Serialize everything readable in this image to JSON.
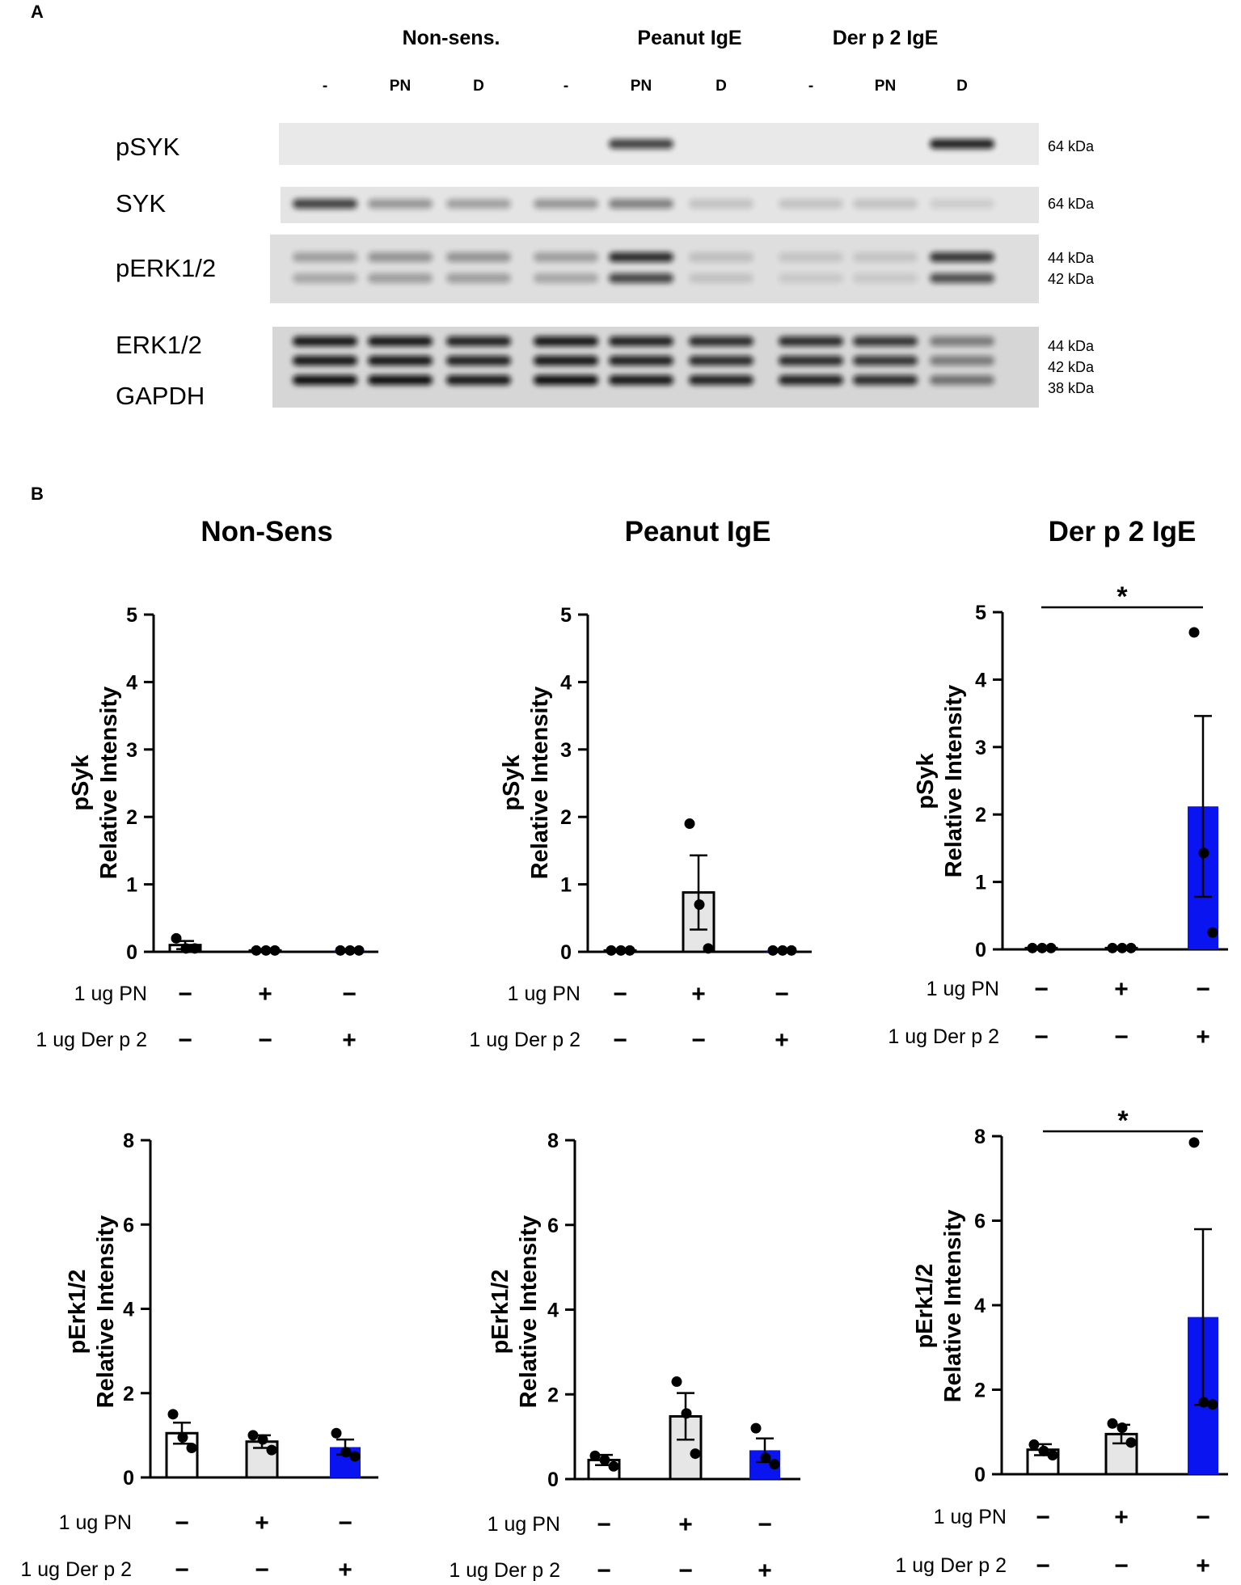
{
  "figure": {
    "panel_a_label": "A",
    "panel_b_label": "B"
  },
  "blot": {
    "group_labels": [
      "Non-sens.",
      "Peanut IgE",
      "Der p 2 IgE"
    ],
    "lane_labels": [
      "-",
      "PN",
      "D",
      "-",
      "PN",
      "D",
      "-",
      "PN",
      "D"
    ],
    "rows": [
      {
        "label": "pSYK",
        "sizes": [
          "64 kDa"
        ]
      },
      {
        "label": "SYK",
        "sizes": [
          "64 kDa"
        ]
      },
      {
        "label": "pERK1/2",
        "sizes": [
          "44 kDa",
          "42 kDa"
        ]
      },
      {
        "label": "ERK1/2",
        "sizes": [
          "44 kDa",
          "42 kDa",
          "38 kDa"
        ]
      },
      {
        "label": "GAPDH",
        "sizes": []
      }
    ]
  },
  "columns": [
    "Non-Sens",
    "Peanut IgE",
    "Der p 2 IgE"
  ],
  "condition_rows": {
    "pn_label": "1 ug PN",
    "derp2_label": "1 ug Der p 2",
    "pn_signs": [
      "−",
      "+",
      "−"
    ],
    "derp2_signs": [
      "−",
      "−",
      "+"
    ]
  },
  "colors": {
    "bar_white": "#ffffff",
    "bar_grey": "#e6e6e6",
    "bar_blue": "#0a14f0",
    "axis": "#000000"
  },
  "ylabels": {
    "psyk": [
      "pSyk",
      "Relative Intensity"
    ],
    "perk": [
      "pErk1/2",
      "Relative Intensity"
    ]
  },
  "chart_data": [
    {
      "type": "bar",
      "title": "Non-Sens",
      "ylabel": "pSyk Relative Intensity",
      "ylim": [
        0,
        5
      ],
      "yticks": [
        0,
        1,
        2,
        3,
        4,
        5
      ],
      "categories": [
        "-",
        "PN",
        "Der p 2"
      ],
      "values": [
        0.1,
        0.02,
        0.02
      ],
      "errors": [
        0.06,
        0.0,
        0.0
      ],
      "points": [
        [
          0.2,
          0.05,
          0.05
        ],
        [
          0.02,
          0.02,
          0.02
        ],
        [
          0.02,
          0.02,
          0.02
        ]
      ],
      "significance": null
    },
    {
      "type": "bar",
      "title": "Peanut IgE",
      "ylabel": "pSyk Relative Intensity",
      "ylim": [
        0,
        5
      ],
      "yticks": [
        0,
        1,
        2,
        3,
        4,
        5
      ],
      "categories": [
        "-",
        "PN",
        "Der p 2"
      ],
      "values": [
        0.02,
        0.88,
        0.02
      ],
      "errors": [
        0.0,
        0.55,
        0.0
      ],
      "points": [
        [
          0.02,
          0.02,
          0.02
        ],
        [
          1.9,
          0.7,
          0.05
        ],
        [
          0.02,
          0.02,
          0.02
        ]
      ],
      "significance": null
    },
    {
      "type": "bar",
      "title": "Der p 2 IgE",
      "ylabel": "pSyk Relative Intensity",
      "ylim": [
        0,
        5
      ],
      "yticks": [
        0,
        1,
        2,
        3,
        4,
        5
      ],
      "categories": [
        "-",
        "PN",
        "Der p 2"
      ],
      "values": [
        0.02,
        0.02,
        2.12
      ],
      "errors": [
        0.0,
        0.0,
        1.34
      ],
      "points": [
        [
          0.02,
          0.02,
          0.02
        ],
        [
          0.02,
          0.02,
          0.02
        ],
        [
          4.7,
          1.43,
          0.25
        ]
      ],
      "significance": "*"
    },
    {
      "type": "bar",
      "title": "Non-Sens",
      "ylabel": "pErk1/2 Relative Intensity",
      "ylim": [
        0,
        8
      ],
      "yticks": [
        0,
        2,
        4,
        6,
        8
      ],
      "categories": [
        "-",
        "PN",
        "Der p 2"
      ],
      "values": [
        1.05,
        0.85,
        0.72
      ],
      "errors": [
        0.25,
        0.15,
        0.18
      ],
      "points": [
        [
          1.5,
          0.95,
          0.7
        ],
        [
          1.0,
          0.9,
          0.65
        ],
        [
          1.05,
          0.6,
          0.5
        ]
      ],
      "significance": null
    },
    {
      "type": "bar",
      "title": "Peanut IgE",
      "ylabel": "pErk1/2 Relative Intensity",
      "ylim": [
        0,
        8
      ],
      "yticks": [
        0,
        2,
        4,
        6,
        8
      ],
      "categories": [
        "-",
        "PN",
        "Der p 2"
      ],
      "values": [
        0.45,
        1.48,
        0.68
      ],
      "errors": [
        0.12,
        0.55,
        0.28
      ],
      "points": [
        [
          0.55,
          0.45,
          0.3
        ],
        [
          2.3,
          1.55,
          0.6
        ],
        [
          1.2,
          0.5,
          0.35
        ]
      ],
      "significance": null
    },
    {
      "type": "bar",
      "title": "Der p 2 IgE",
      "ylabel": "pErk1/2 Relative Intensity",
      "ylim": [
        0,
        8
      ],
      "yticks": [
        0,
        2,
        4,
        6,
        8
      ],
      "categories": [
        "-",
        "PN",
        "Der p 2"
      ],
      "values": [
        0.58,
        0.95,
        3.72
      ],
      "errors": [
        0.13,
        0.22,
        2.08
      ],
      "points": [
        [
          0.7,
          0.55,
          0.45
        ],
        [
          1.2,
          1.1,
          0.75
        ],
        [
          7.85,
          1.7,
          1.65
        ]
      ],
      "significance": "*"
    }
  ]
}
